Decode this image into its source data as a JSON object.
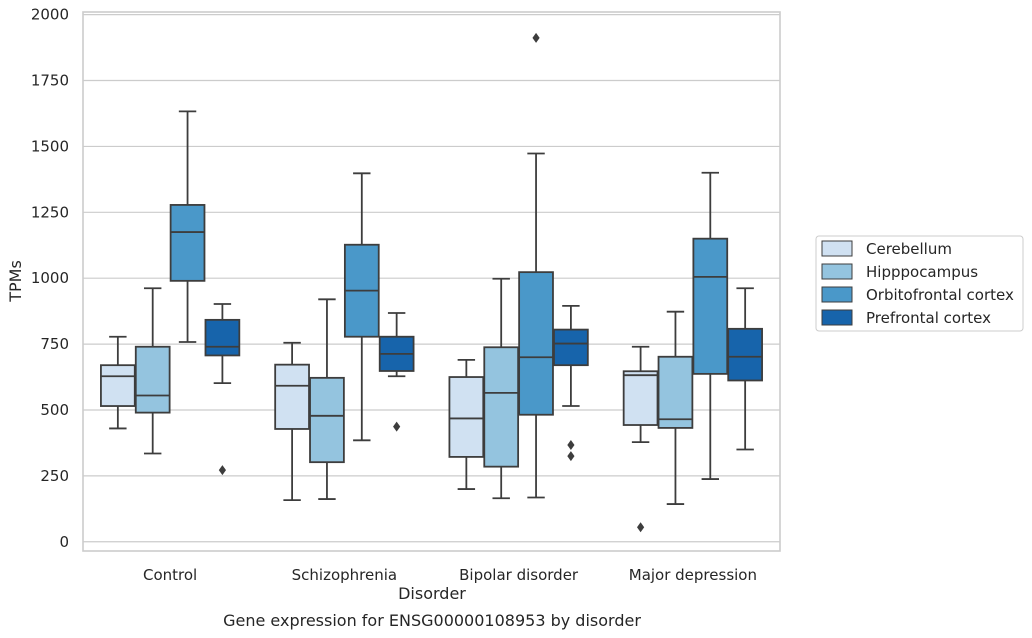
{
  "chart_data": {
    "type": "box",
    "title": "",
    "caption": "Gene expression for ENSG00000108953 by disorder",
    "xlabel": "Disorder",
    "ylabel": "TPMs",
    "ylim": [
      -35,
      2010
    ],
    "yticks": [
      0,
      250,
      500,
      750,
      1000,
      1250,
      1500,
      1750,
      2000
    ],
    "grid": true,
    "legend_position": "right",
    "categories": [
      "Control",
      "Schizophrenia",
      "Bipolar disorder",
      "Major depression"
    ],
    "series": [
      {
        "name": "Cerebellum",
        "color": "#d0e1f2",
        "boxes": [
          {
            "min": 430,
            "q1": 515,
            "median": 628,
            "q3": 670,
            "max": 778,
            "outliers": []
          },
          {
            "min": 158,
            "q1": 428,
            "median": 592,
            "q3": 672,
            "max": 755,
            "outliers": []
          },
          {
            "min": 200,
            "q1": 322,
            "median": 468,
            "q3": 625,
            "max": 690,
            "outliers": []
          },
          {
            "min": 378,
            "q1": 443,
            "median": 632,
            "q3": 647,
            "max": 740,
            "outliers": [
              55
            ]
          }
        ]
      },
      {
        "name": "Hipppocampus",
        "color": "#94c4df",
        "boxes": [
          {
            "min": 335,
            "q1": 490,
            "median": 555,
            "q3": 740,
            "max": 962,
            "outliers": []
          },
          {
            "min": 162,
            "q1": 302,
            "median": 478,
            "q3": 622,
            "max": 920,
            "outliers": []
          },
          {
            "min": 165,
            "q1": 285,
            "median": 565,
            "q3": 738,
            "max": 998,
            "outliers": []
          },
          {
            "min": 143,
            "q1": 432,
            "median": 465,
            "q3": 702,
            "max": 873,
            "outliers": []
          }
        ]
      },
      {
        "name": "Orbitofrontal cortex",
        "color": "#4a98c9",
        "boxes": [
          {
            "min": 758,
            "q1": 990,
            "median": 1175,
            "q3": 1278,
            "max": 1633,
            "outliers": []
          },
          {
            "min": 385,
            "q1": 778,
            "median": 953,
            "q3": 1127,
            "max": 1398,
            "outliers": []
          },
          {
            "min": 168,
            "q1": 482,
            "median": 700,
            "q3": 1023,
            "max": 1473,
            "outliers": [
              1912
            ]
          },
          {
            "min": 238,
            "q1": 637,
            "median": 1005,
            "q3": 1150,
            "max": 1400,
            "outliers": []
          }
        ]
      },
      {
        "name": "Prefrontal cortex",
        "color": "#1764ab",
        "boxes": [
          {
            "min": 602,
            "q1": 707,
            "median": 740,
            "q3": 842,
            "max": 902,
            "outliers": [
              272
            ]
          },
          {
            "min": 628,
            "q1": 648,
            "median": 713,
            "q3": 778,
            "max": 868,
            "outliers": [
              437
            ]
          },
          {
            "min": 515,
            "q1": 670,
            "median": 752,
            "q3": 805,
            "max": 895,
            "outliers": [
              367,
              325
            ]
          },
          {
            "min": 350,
            "q1": 612,
            "median": 702,
            "q3": 808,
            "max": 962,
            "outliers": []
          }
        ]
      }
    ]
  }
}
